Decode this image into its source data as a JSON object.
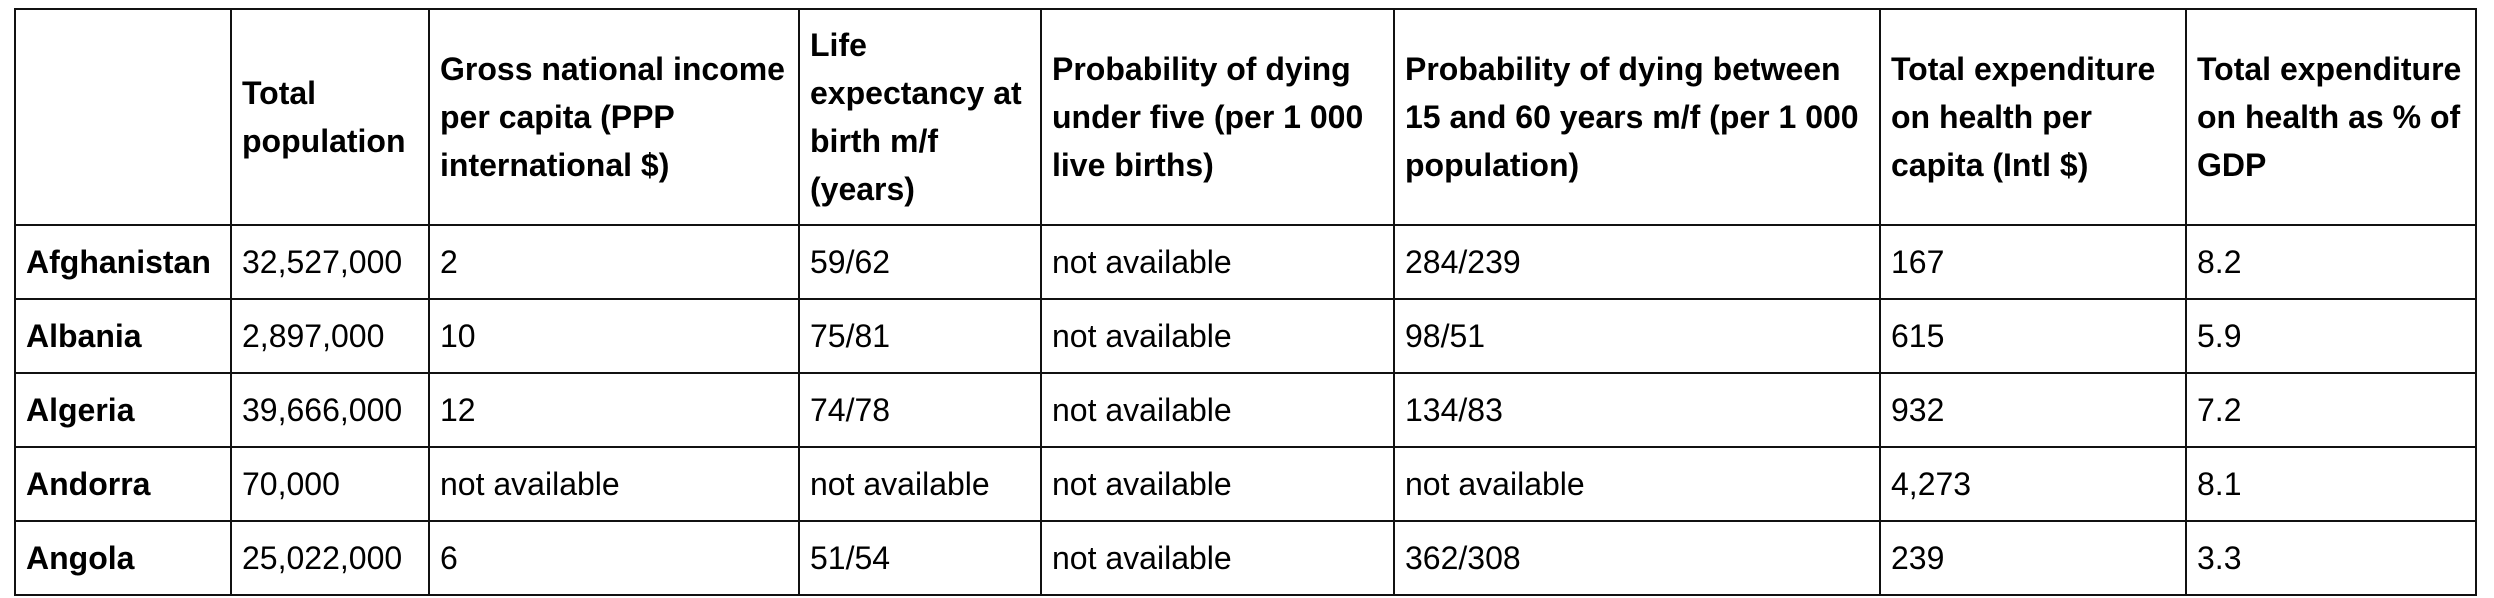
{
  "table": {
    "headers": [
      "",
      "Total population",
      "Gross national income per capita (PPP international $)",
      "Life expectancy at birth m/f (years)",
      "Probability of dying under five (per 1 000 live births)",
      "Probability of dying between 15 and 60 years m/f (per 1 000 population)",
      "Total expenditure on health per capita (Intl $)",
      "Total expenditure on health as % of GDP"
    ],
    "rows": [
      [
        "Afghanistan",
        "32,527,000",
        "2",
        "59/62",
        "not available",
        "284/239",
        "167",
        "8.2"
      ],
      [
        "Albania",
        "2,897,000",
        "10",
        "75/81",
        "not available",
        "98/51",
        "615",
        "5.9"
      ],
      [
        "Algeria",
        "39,666,000",
        "12",
        "74/78",
        "not available",
        "134/83",
        "932",
        "7.2"
      ],
      [
        "Andorra",
        "70,000",
        "not available",
        "not available",
        "not available",
        "not available",
        "4,273",
        "8.1"
      ],
      [
        "Angola",
        "25,022,000",
        "6",
        "51/54",
        "not available",
        "362/308",
        "239",
        "3.3"
      ]
    ]
  }
}
